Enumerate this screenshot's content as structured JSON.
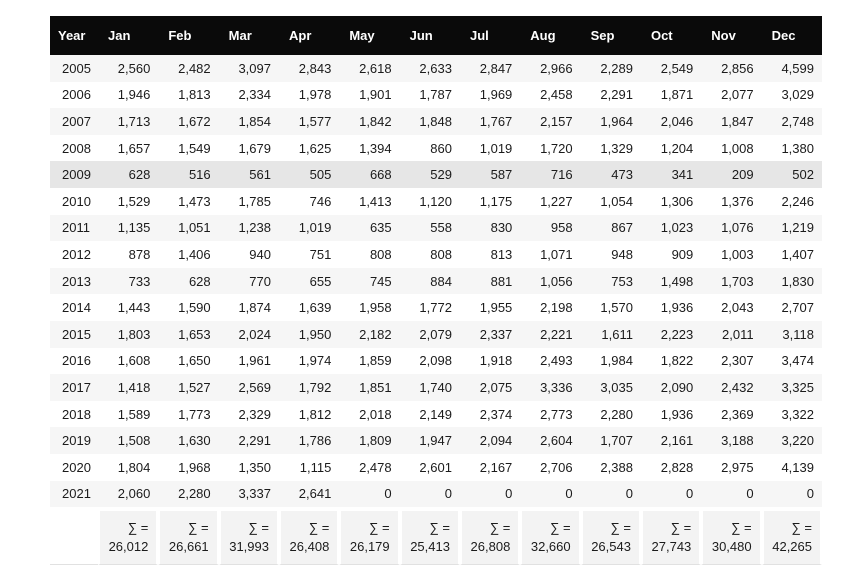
{
  "table": {
    "columns": [
      "Year",
      "Jan",
      "Feb",
      "Mar",
      "Apr",
      "May",
      "Jun",
      "Jul",
      "Aug",
      "Sep",
      "Oct",
      "Nov",
      "Dec"
    ],
    "rows": [
      {
        "year": "2005",
        "values": [
          "2,560",
          "2,482",
          "3,097",
          "2,843",
          "2,618",
          "2,633",
          "2,847",
          "2,966",
          "2,289",
          "2,549",
          "2,856",
          "4,599"
        ]
      },
      {
        "year": "2006",
        "values": [
          "1,946",
          "1,813",
          "2,334",
          "1,978",
          "1,901",
          "1,787",
          "1,969",
          "2,458",
          "2,291",
          "1,871",
          "2,077",
          "3,029"
        ]
      },
      {
        "year": "2007",
        "values": [
          "1,713",
          "1,672",
          "1,854",
          "1,577",
          "1,842",
          "1,848",
          "1,767",
          "2,157",
          "1,964",
          "2,046",
          "1,847",
          "2,748"
        ]
      },
      {
        "year": "2008",
        "values": [
          "1,657",
          "1,549",
          "1,679",
          "1,625",
          "1,394",
          "860",
          "1,019",
          "1,720",
          "1,329",
          "1,204",
          "1,008",
          "1,380"
        ]
      },
      {
        "year": "2009",
        "values": [
          "628",
          "516",
          "561",
          "505",
          "668",
          "529",
          "587",
          "716",
          "473",
          "341",
          "209",
          "502"
        ]
      },
      {
        "year": "2010",
        "values": [
          "1,529",
          "1,473",
          "1,785",
          "746",
          "1,413",
          "1,120",
          "1,175",
          "1,227",
          "1,054",
          "1,306",
          "1,376",
          "2,246"
        ]
      },
      {
        "year": "2011",
        "values": [
          "1,135",
          "1,051",
          "1,238",
          "1,019",
          "635",
          "558",
          "830",
          "958",
          "867",
          "1,023",
          "1,076",
          "1,219"
        ]
      },
      {
        "year": "2012",
        "values": [
          "878",
          "1,406",
          "940",
          "751",
          "808",
          "808",
          "813",
          "1,071",
          "948",
          "909",
          "1,003",
          "1,407"
        ]
      },
      {
        "year": "2013",
        "values": [
          "733",
          "628",
          "770",
          "655",
          "745",
          "884",
          "881",
          "1,056",
          "753",
          "1,498",
          "1,703",
          "1,830"
        ]
      },
      {
        "year": "2014",
        "values": [
          "1,443",
          "1,590",
          "1,874",
          "1,639",
          "1,958",
          "1,772",
          "1,955",
          "2,198",
          "1,570",
          "1,936",
          "2,043",
          "2,707"
        ]
      },
      {
        "year": "2015",
        "values": [
          "1,803",
          "1,653",
          "2,024",
          "1,950",
          "2,182",
          "2,079",
          "2,337",
          "2,221",
          "1,611",
          "2,223",
          "2,011",
          "3,118"
        ]
      },
      {
        "year": "2016",
        "values": [
          "1,608",
          "1,650",
          "1,961",
          "1,974",
          "1,859",
          "2,098",
          "1,918",
          "2,493",
          "1,984",
          "1,822",
          "2,307",
          "3,474"
        ]
      },
      {
        "year": "2017",
        "values": [
          "1,418",
          "1,527",
          "2,569",
          "1,792",
          "1,851",
          "1,740",
          "2,075",
          "3,336",
          "3,035",
          "2,090",
          "2,432",
          "3,325"
        ]
      },
      {
        "year": "2018",
        "values": [
          "1,589",
          "1,773",
          "2,329",
          "1,812",
          "2,018",
          "2,149",
          "2,374",
          "2,773",
          "2,280",
          "1,936",
          "2,369",
          "3,322"
        ]
      },
      {
        "year": "2019",
        "values": [
          "1,508",
          "1,630",
          "2,291",
          "1,786",
          "1,809",
          "1,947",
          "2,094",
          "2,604",
          "1,707",
          "2,161",
          "3,188",
          "3,220"
        ]
      },
      {
        "year": "2020",
        "values": [
          "1,804",
          "1,968",
          "1,350",
          "1,115",
          "2,478",
          "2,601",
          "2,167",
          "2,706",
          "2,388",
          "2,828",
          "2,975",
          "4,139"
        ]
      },
      {
        "year": "2021",
        "values": [
          "2,060",
          "2,280",
          "3,337",
          "2,641",
          "0",
          "0",
          "0",
          "0",
          "0",
          "0",
          "0",
          "0"
        ]
      }
    ],
    "highlighted_year": "2009",
    "totals": {
      "label": "∑ =",
      "values": [
        "26,012",
        "26,661",
        "31,993",
        "26,408",
        "26,179",
        "25,413",
        "26,808",
        "32,660",
        "26,543",
        "27,743",
        "30,480",
        "42,265"
      ]
    }
  },
  "colors": {
    "header_bg": "#0a0a0a",
    "header_text": "#ffffff",
    "row_stripe": "#f6f6f6",
    "row_highlight": "#e6e6e6",
    "totals_bg": "#f3f3f3",
    "body_text": "#1b1b1b",
    "bottom_border": "#e1e1e1"
  },
  "chart_data": {
    "type": "table",
    "title": "Monthly counts per year with column sums",
    "columns": [
      "Year",
      "Jan",
      "Feb",
      "Mar",
      "Apr",
      "May",
      "Jun",
      "Jul",
      "Aug",
      "Sep",
      "Oct",
      "Nov",
      "Dec"
    ],
    "years": [
      2005,
      2006,
      2007,
      2008,
      2009,
      2010,
      2011,
      2012,
      2013,
      2014,
      2015,
      2016,
      2017,
      2018,
      2019,
      2020,
      2021
    ],
    "rows": [
      [
        2005,
        2560,
        2482,
        3097,
        2843,
        2618,
        2633,
        2847,
        2966,
        2289,
        2549,
        2856,
        4599
      ],
      [
        2006,
        1946,
        1813,
        2334,
        1978,
        1901,
        1787,
        1969,
        2458,
        2291,
        1871,
        2077,
        3029
      ],
      [
        2007,
        1713,
        1672,
        1854,
        1577,
        1842,
        1848,
        1767,
        2157,
        1964,
        2046,
        1847,
        2748
      ],
      [
        2008,
        1657,
        1549,
        1679,
        1625,
        1394,
        860,
        1019,
        1720,
        1329,
        1204,
        1008,
        1380
      ],
      [
        2009,
        628,
        516,
        561,
        505,
        668,
        529,
        587,
        716,
        473,
        341,
        209,
        502
      ],
      [
        2010,
        1529,
        1473,
        1785,
        746,
        1413,
        1120,
        1175,
        1227,
        1054,
        1306,
        1376,
        2246
      ],
      [
        2011,
        1135,
        1051,
        1238,
        1019,
        635,
        558,
        830,
        958,
        867,
        1023,
        1076,
        1219
      ],
      [
        2012,
        878,
        1406,
        940,
        751,
        808,
        808,
        813,
        1071,
        948,
        909,
        1003,
        1407
      ],
      [
        2013,
        733,
        628,
        770,
        655,
        745,
        884,
        881,
        1056,
        753,
        1498,
        1703,
        1830
      ],
      [
        2014,
        1443,
        1590,
        1874,
        1639,
        1958,
        1772,
        1955,
        2198,
        1570,
        1936,
        2043,
        2707
      ],
      [
        2015,
        1803,
        1653,
        2024,
        1950,
        2182,
        2079,
        2337,
        2221,
        1611,
        2223,
        2011,
        3118
      ],
      [
        2016,
        1608,
        1650,
        1961,
        1974,
        1859,
        2098,
        1918,
        2493,
        1984,
        1822,
        2307,
        3474
      ],
      [
        2017,
        1418,
        1527,
        2569,
        1792,
        1851,
        1740,
        2075,
        3336,
        3035,
        2090,
        2432,
        3325
      ],
      [
        2018,
        1589,
        1773,
        2329,
        1812,
        2018,
        2149,
        2374,
        2773,
        2280,
        1936,
        2369,
        3322
      ],
      [
        2019,
        1508,
        1630,
        2291,
        1786,
        1809,
        1947,
        2094,
        2604,
        1707,
        2161,
        3188,
        3220
      ],
      [
        2020,
        1804,
        1968,
        1350,
        1115,
        2478,
        2601,
        2167,
        2706,
        2388,
        2828,
        2975,
        4139
      ],
      [
        2021,
        2060,
        2280,
        3337,
        2641,
        0,
        0,
        0,
        0,
        0,
        0,
        0,
        0
      ]
    ],
    "column_totals": [
      26012,
      26661,
      31993,
      26408,
      26179,
      25413,
      26808,
      32660,
      26543,
      27743,
      30480,
      42265
    ],
    "highlighted_row": 2009,
    "layout": {
      "striped": true,
      "header_style": "black",
      "totals_row": true
    }
  }
}
